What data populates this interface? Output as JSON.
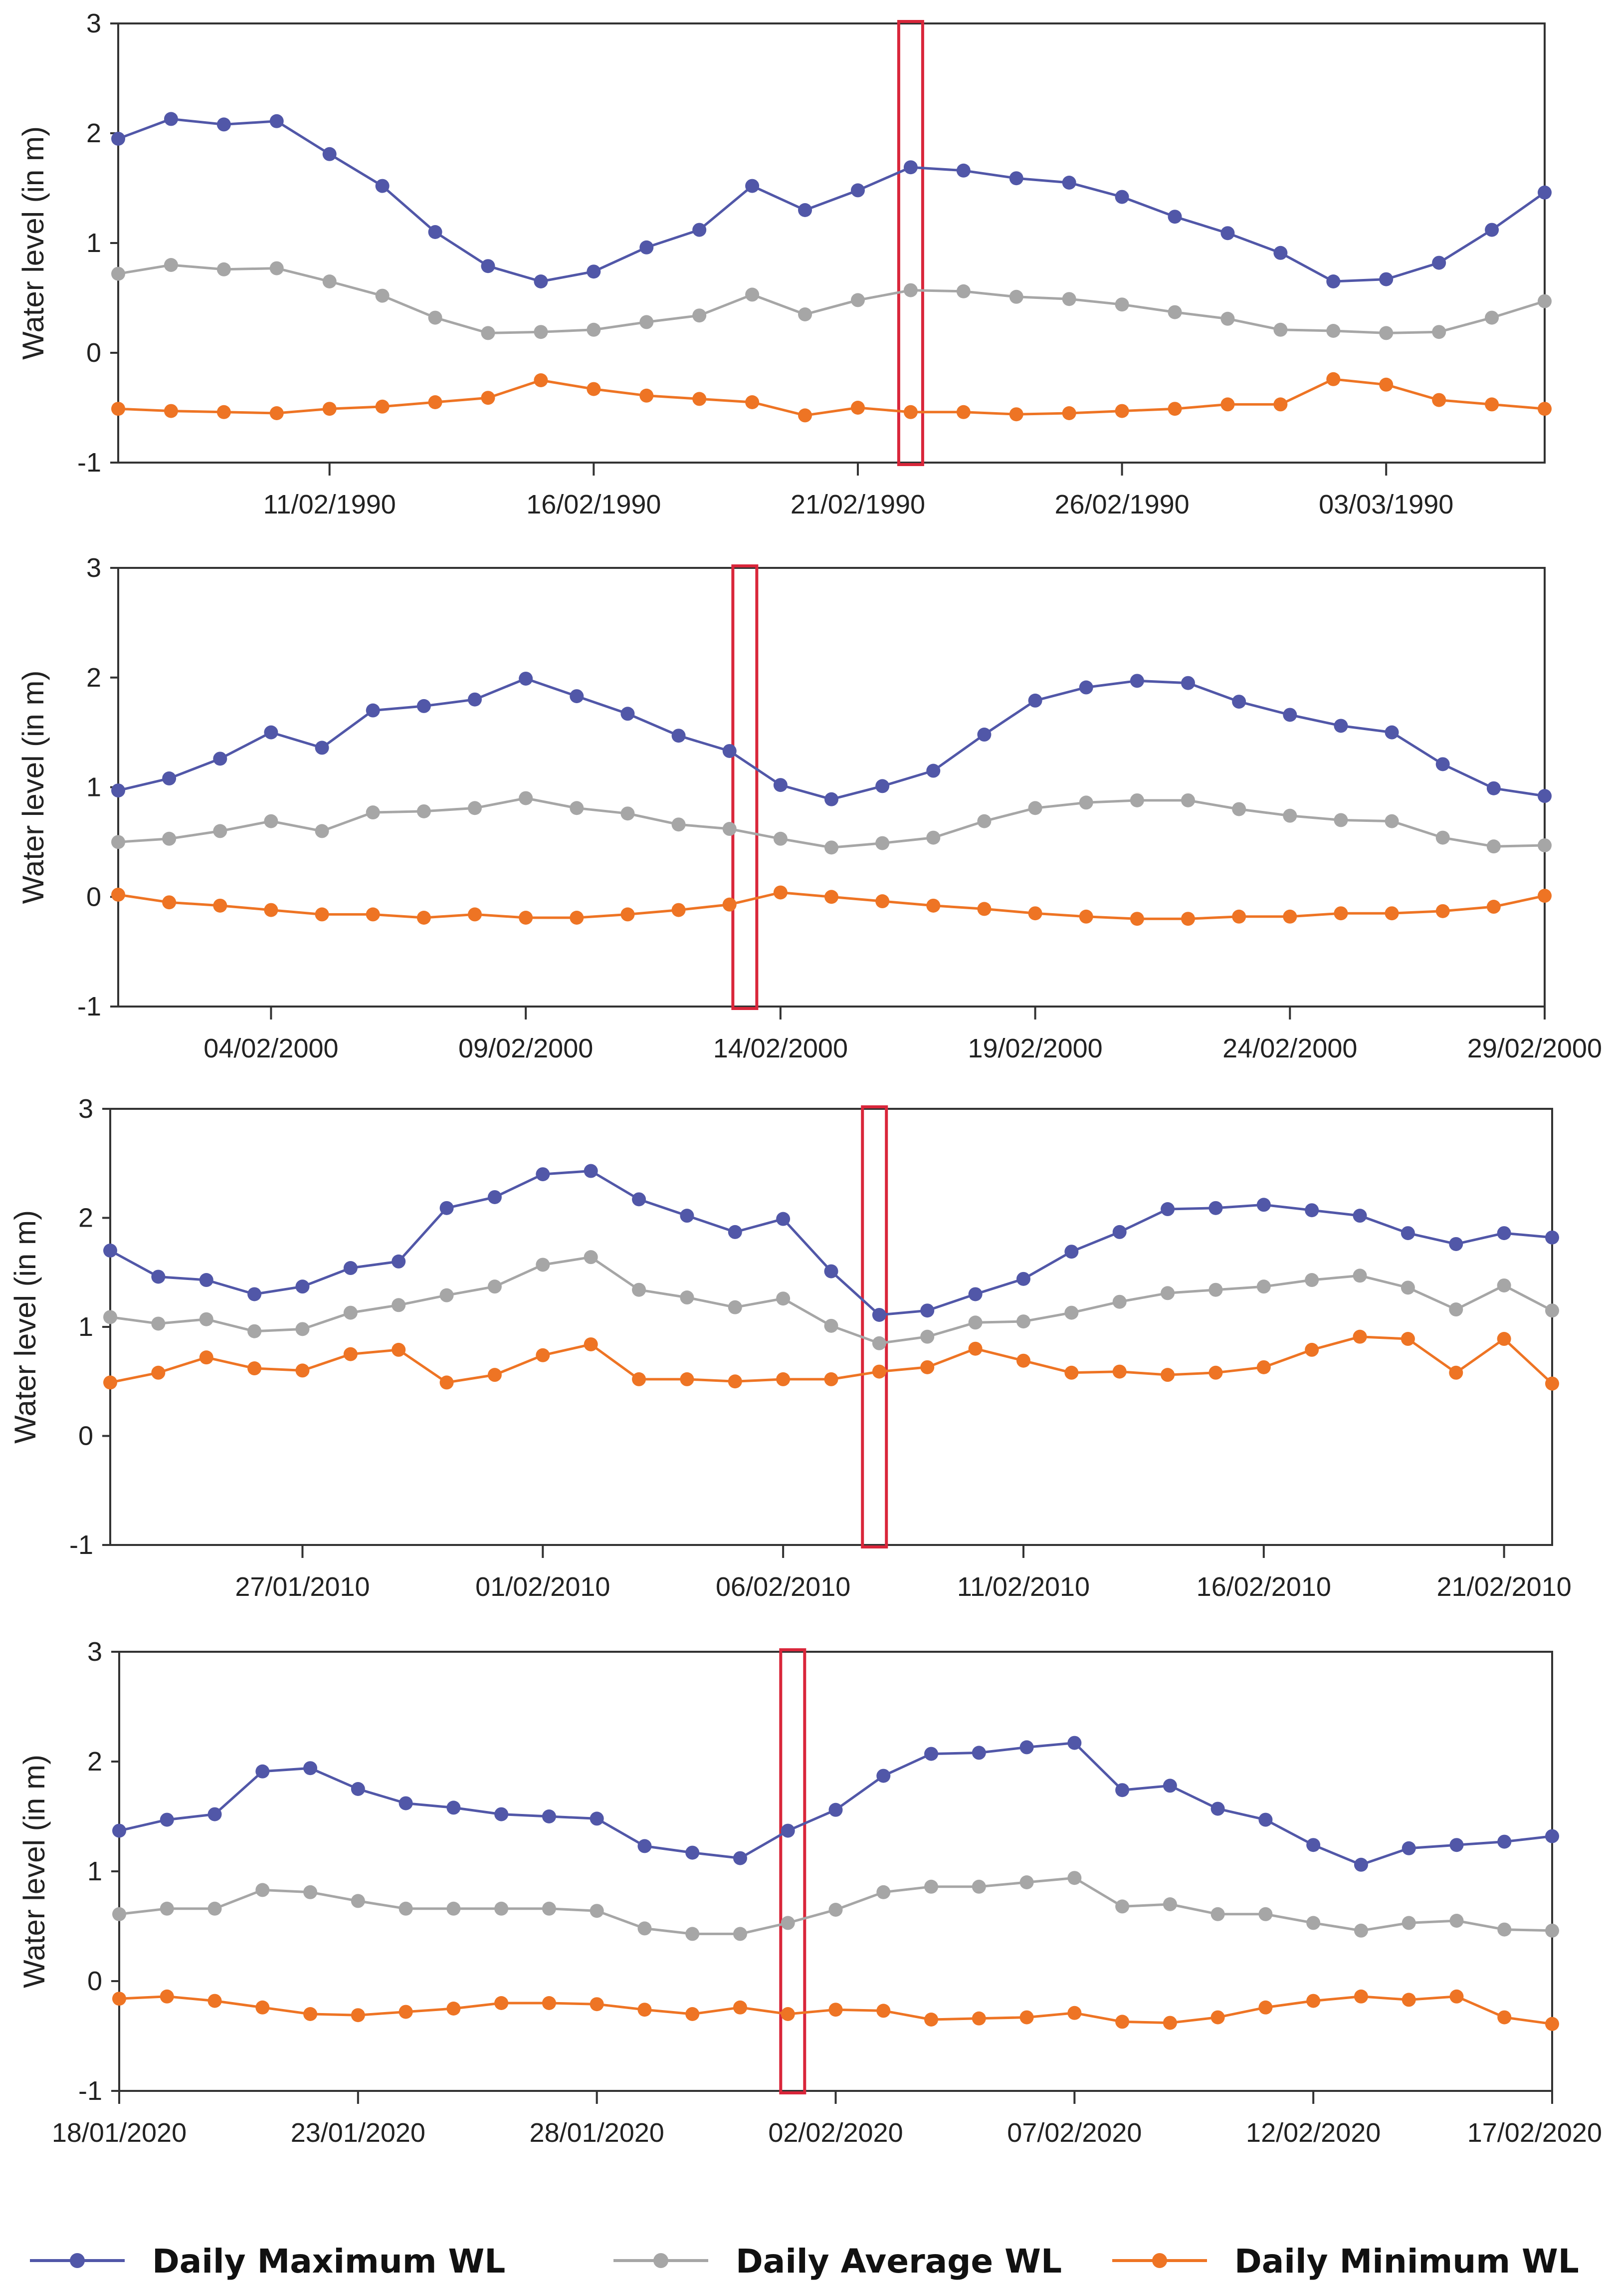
{
  "colors": {
    "max": "#5157a8",
    "avg": "#a6a6a6",
    "min": "#ee7424",
    "highlight": "#d9263a",
    "axis": "#333333"
  },
  "legend": [
    {
      "key": "max",
      "label": "Daily Maximum WL"
    },
    {
      "key": "avg",
      "label": "Daily Average WL"
    },
    {
      "key": "min",
      "label": "Daily Minimum WL"
    }
  ],
  "chart_data": [
    {
      "type": "line",
      "ylabel": "Water level (in m)",
      "ylim": [
        -1,
        3
      ],
      "yticks": [
        "3",
        "2",
        "1",
        "0",
        "-1"
      ],
      "points": 28,
      "xticks": [
        {
          "index": 4,
          "label": "11/02/1990"
        },
        {
          "index": 9,
          "label": "16/02/1990"
        },
        {
          "index": 14,
          "label": "21/02/1990"
        },
        {
          "index": 19,
          "label": "26/02/1990"
        },
        {
          "index": 24,
          "label": "03/03/1990"
        }
      ],
      "highlight_index": 15,
      "series": [
        {
          "name": "Daily Maximum WL",
          "key": "max",
          "values": [
            1.95,
            2.13,
            2.08,
            2.11,
            1.81,
            1.52,
            1.1,
            0.79,
            0.65,
            0.74,
            0.96,
            1.12,
            1.52,
            1.3,
            1.48,
            1.69,
            1.66,
            1.59,
            1.55,
            1.42,
            1.24,
            1.09,
            0.91,
            0.65,
            0.67,
            0.82,
            1.12,
            1.46
          ]
        },
        {
          "name": "Daily Average WL",
          "key": "avg",
          "values": [
            0.72,
            0.8,
            0.76,
            0.77,
            0.65,
            0.52,
            0.32,
            0.18,
            0.19,
            0.21,
            0.28,
            0.34,
            0.53,
            0.35,
            0.48,
            0.57,
            0.56,
            0.51,
            0.49,
            0.44,
            0.37,
            0.31,
            0.21,
            0.2,
            0.18,
            0.19,
            0.32,
            0.47
          ]
        },
        {
          "name": "Daily Minimum WL",
          "key": "min",
          "values": [
            -0.51,
            -0.53,
            -0.54,
            -0.55,
            -0.51,
            -0.49,
            -0.45,
            -0.41,
            -0.25,
            -0.33,
            -0.39,
            -0.42,
            -0.45,
            -0.57,
            -0.5,
            -0.54,
            -0.54,
            -0.56,
            -0.55,
            -0.53,
            -0.51,
            -0.47,
            -0.47,
            -0.24,
            -0.29,
            -0.43,
            -0.47,
            -0.51
          ]
        }
      ]
    },
    {
      "type": "line",
      "ylabel": "Water level (in m)",
      "ylim": [
        -1,
        3
      ],
      "yticks": [
        "3",
        "2",
        "1",
        "0",
        "-1"
      ],
      "points": 29,
      "xticks": [
        {
          "index": 3,
          "label": "04/02/2000"
        },
        {
          "index": 8,
          "label": "09/02/2000"
        },
        {
          "index": 13,
          "label": "14/02/2000"
        },
        {
          "index": 18,
          "label": "19/02/2000"
        },
        {
          "index": 23,
          "label": "24/02/2000"
        },
        {
          "index": 28,
          "label": "29/02/2000"
        }
      ],
      "highlight_index": 12.3,
      "series": [
        {
          "name": "Daily Maximum WL",
          "key": "max",
          "values": [
            0.97,
            1.08,
            1.26,
            1.5,
            1.36,
            1.7,
            1.74,
            1.8,
            1.99,
            1.83,
            1.67,
            1.47,
            1.33,
            1.02,
            0.89,
            1.01,
            1.15,
            1.48,
            1.79,
            1.91,
            1.97,
            1.95,
            1.78,
            1.66,
            1.56,
            1.5,
            1.21,
            0.99,
            0.92
          ]
        },
        {
          "name": "Daily Average WL",
          "key": "avg",
          "values": [
            0.5,
            0.53,
            0.6,
            0.69,
            0.6,
            0.77,
            0.78,
            0.81,
            0.9,
            0.81,
            0.76,
            0.66,
            0.62,
            0.53,
            0.45,
            0.49,
            0.54,
            0.69,
            0.81,
            0.86,
            0.88,
            0.88,
            0.8,
            0.74,
            0.7,
            0.69,
            0.54,
            0.46,
            0.47
          ]
        },
        {
          "name": "Daily Minimum WL",
          "key": "min",
          "values": [
            0.02,
            -0.05,
            -0.08,
            -0.12,
            -0.16,
            -0.16,
            -0.19,
            -0.16,
            -0.19,
            -0.19,
            -0.16,
            -0.12,
            -0.07,
            0.04,
            0.0,
            -0.04,
            -0.08,
            -0.11,
            -0.15,
            -0.18,
            -0.2,
            -0.2,
            -0.18,
            -0.18,
            -0.15,
            -0.15,
            -0.13,
            -0.09,
            0.01
          ]
        }
      ]
    },
    {
      "type": "line",
      "ylabel": "Water level (in m)",
      "ylim": [
        -1,
        3
      ],
      "yticks": [
        "3",
        "2",
        "1",
        "0",
        "-1"
      ],
      "points": 31,
      "xticks": [
        {
          "index": 4,
          "label": "27/01/2010"
        },
        {
          "index": 9,
          "label": "01/02/2010"
        },
        {
          "index": 14,
          "label": "06/02/2010"
        },
        {
          "index": 19,
          "label": "11/02/2010"
        },
        {
          "index": 24,
          "label": "16/02/2010"
        },
        {
          "index": 29,
          "label": "21/02/2010"
        }
      ],
      "highlight_index": 15.9,
      "series": [
        {
          "name": "Daily Maximum WL",
          "key": "max",
          "values": [
            1.7,
            1.46,
            1.43,
            1.3,
            1.37,
            1.54,
            1.6,
            2.09,
            2.19,
            2.4,
            2.43,
            2.17,
            2.02,
            1.87,
            1.99,
            1.51,
            1.11,
            1.15,
            1.3,
            1.44,
            1.69,
            1.87,
            2.08,
            2.09,
            2.12,
            2.07,
            2.02,
            1.86,
            1.76,
            1.86,
            1.82
          ]
        },
        {
          "name": "Daily Average WL",
          "key": "avg",
          "values": [
            1.09,
            1.03,
            1.07,
            0.96,
            0.98,
            1.13,
            1.2,
            1.29,
            1.37,
            1.57,
            1.64,
            1.34,
            1.27,
            1.18,
            1.26,
            1.01,
            0.85,
            0.91,
            1.04,
            1.05,
            1.13,
            1.23,
            1.31,
            1.34,
            1.37,
            1.43,
            1.47,
            1.36,
            1.16,
            1.38,
            1.15
          ]
        },
        {
          "name": "Daily Minimum WL",
          "key": "min",
          "values": [
            0.49,
            0.58,
            0.72,
            0.62,
            0.6,
            0.75,
            0.79,
            0.49,
            0.56,
            0.74,
            0.84,
            0.52,
            0.52,
            0.5,
            0.52,
            0.52,
            0.59,
            0.63,
            0.8,
            0.69,
            0.58,
            0.59,
            0.56,
            0.58,
            0.63,
            0.79,
            0.91,
            0.89,
            0.58,
            0.89,
            0.48
          ]
        }
      ]
    },
    {
      "type": "line",
      "ylabel": "Water level (in m)",
      "ylim": [
        -1,
        3
      ],
      "yticks": [
        "3",
        "2",
        "1",
        "0",
        "-1"
      ],
      "points": 31,
      "xticks": [
        {
          "index": 0,
          "label": "18/01/2020"
        },
        {
          "index": 5,
          "label": "23/01/2020"
        },
        {
          "index": 10,
          "label": "28/01/2020"
        },
        {
          "index": 15,
          "label": "02/02/2020"
        },
        {
          "index": 20,
          "label": "07/02/2020"
        },
        {
          "index": 25,
          "label": "12/02/2020"
        },
        {
          "index": 30,
          "label": "17/02/2020"
        }
      ],
      "highlight_index": 14.1,
      "series": [
        {
          "name": "Daily Maximum WL",
          "key": "max",
          "values": [
            1.37,
            1.47,
            1.52,
            1.91,
            1.94,
            1.75,
            1.62,
            1.58,
            1.52,
            1.5,
            1.48,
            1.23,
            1.17,
            1.12,
            1.37,
            1.56,
            1.87,
            2.07,
            2.08,
            2.13,
            2.17,
            1.74,
            1.78,
            1.57,
            1.47,
            1.24,
            1.06,
            1.21,
            1.24,
            1.27,
            1.32
          ]
        },
        {
          "name": "Daily Average WL",
          "key": "avg",
          "values": [
            0.61,
            0.66,
            0.66,
            0.83,
            0.81,
            0.73,
            0.66,
            0.66,
            0.66,
            0.66,
            0.64,
            0.48,
            0.43,
            0.43,
            0.53,
            0.65,
            0.81,
            0.86,
            0.86,
            0.9,
            0.94,
            0.68,
            0.7,
            0.61,
            0.61,
            0.53,
            0.46,
            0.53,
            0.55,
            0.47,
            0.46
          ]
        },
        {
          "name": "Daily Minimum WL",
          "key": "min",
          "values": [
            -0.16,
            -0.14,
            -0.18,
            -0.24,
            -0.3,
            -0.31,
            -0.28,
            -0.25,
            -0.2,
            -0.2,
            -0.21,
            -0.26,
            -0.3,
            -0.24,
            -0.3,
            -0.26,
            -0.27,
            -0.35,
            -0.34,
            -0.33,
            -0.29,
            -0.37,
            -0.38,
            -0.33,
            -0.24,
            -0.18,
            -0.14,
            -0.17,
            -0.14,
            -0.33,
            -0.39
          ]
        }
      ]
    }
  ]
}
